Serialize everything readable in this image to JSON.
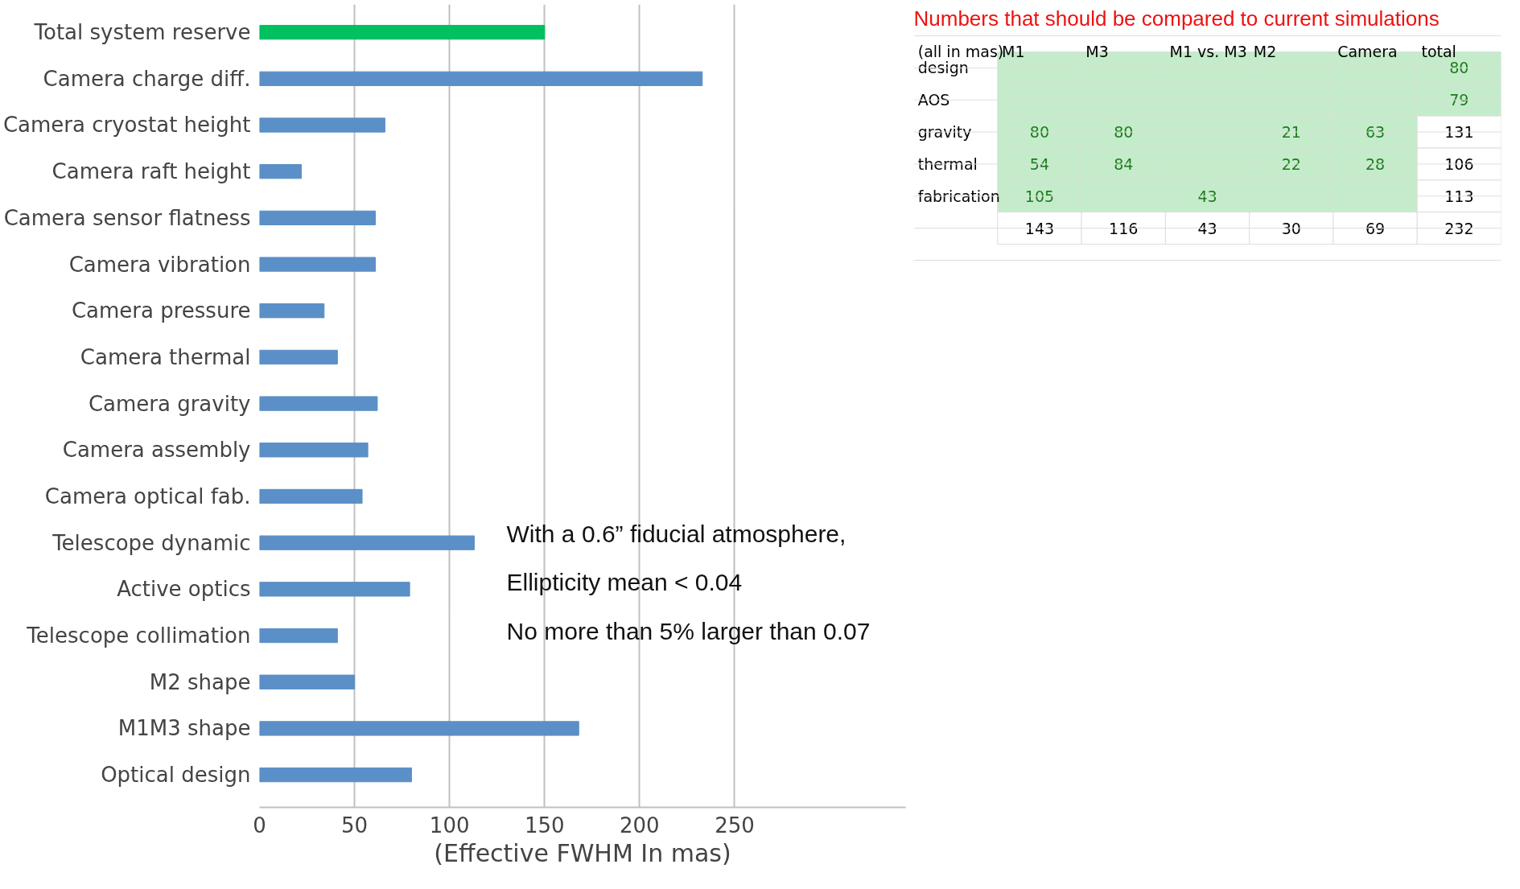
{
  "chart_data": [
    {
      "type": "bar",
      "orientation": "horizontal",
      "xlabel": "(Effective FWHM In mas)",
      "categories": [
        "Total system reserve",
        "Camera charge diff.",
        "Camera cryostat height",
        "Camera raft height",
        "Camera sensor flatness",
        "Camera vibration",
        "Camera pressure",
        "Camera thermal",
        "Camera gravity",
        "Camera assembly",
        "Camera optical fab.",
        "Telescope dynamic",
        "Active optics",
        "Telescope collimation",
        "M2 shape",
        "M1M3 shape",
        "Optical design"
      ],
      "values": [
        150,
        233,
        66,
        22,
        61,
        61,
        34,
        41,
        62,
        57,
        54,
        113,
        79,
        41,
        50,
        168,
        80
      ],
      "colors": [
        "#00c060",
        "#5b8fc7",
        "#5b8fc7",
        "#5b8fc7",
        "#5b8fc7",
        "#5b8fc7",
        "#5b8fc7",
        "#5b8fc7",
        "#5b8fc7",
        "#5b8fc7",
        "#5b8fc7",
        "#5b8fc7",
        "#5b8fc7",
        "#5b8fc7",
        "#5b8fc7",
        "#5b8fc7",
        "#5b8fc7"
      ],
      "xlim": [
        0,
        340
      ],
      "xticks": [
        0,
        50,
        100,
        150,
        200,
        250
      ],
      "grid": "x",
      "annotations": [
        "With a 0.6” fiducial atmosphere,",
        "Ellipticity mean < 0.04",
        "No more than 5% larger than 0.07"
      ]
    },
    {
      "type": "heatmap",
      "title": "Numbers that should be compared to current simulations",
      "annotations": [
        "(all in mas)"
      ],
      "data_labels": true,
      "categories": [
        "M1",
        "M3",
        "M1 vs. M3",
        "M2",
        "Camera",
        "total"
      ],
      "y_categories": [
        "design",
        "AOS",
        "gravity",
        "thermal",
        "fabrication",
        null
      ],
      "cells": [
        [
          null,
          null,
          null,
          null,
          null,
          80
        ],
        [
          null,
          null,
          null,
          null,
          null,
          79
        ],
        [
          80,
          80,
          null,
          21,
          63,
          131
        ],
        [
          54,
          84,
          null,
          22,
          28,
          106
        ],
        [
          105,
          null,
          43,
          null,
          null,
          113
        ],
        [
          143,
          116,
          43,
          30,
          69,
          232
        ]
      ],
      "colors": [
        [
          "#c4ecca",
          "#c4ecca",
          "#c4ecca",
          "#c4ecca",
          "#c4ecca",
          "#c4ecca"
        ],
        [
          "#c4ecca",
          "#c4ecca",
          "#c4ecca",
          "#c4ecca",
          "#c4ecca",
          "#c4ecca"
        ],
        [
          "#c4ecca",
          "#c4ecca",
          "#c4ecca",
          "#c4ecca",
          "#c4ecca",
          "#ffffff"
        ],
        [
          "#c4ecca",
          "#c4ecca",
          "#c4ecca",
          "#c4ecca",
          "#c4ecca",
          "#ffffff"
        ],
        [
          "#c4ecca",
          "#c4ecca",
          "#c4ecca",
          "#c4ecca",
          "#c4ecca",
          "#ffffff"
        ],
        [
          "#ffffff",
          "#ffffff",
          "#ffffff",
          "#ffffff",
          "#ffffff",
          "#ffffff"
        ]
      ]
    }
  ]
}
